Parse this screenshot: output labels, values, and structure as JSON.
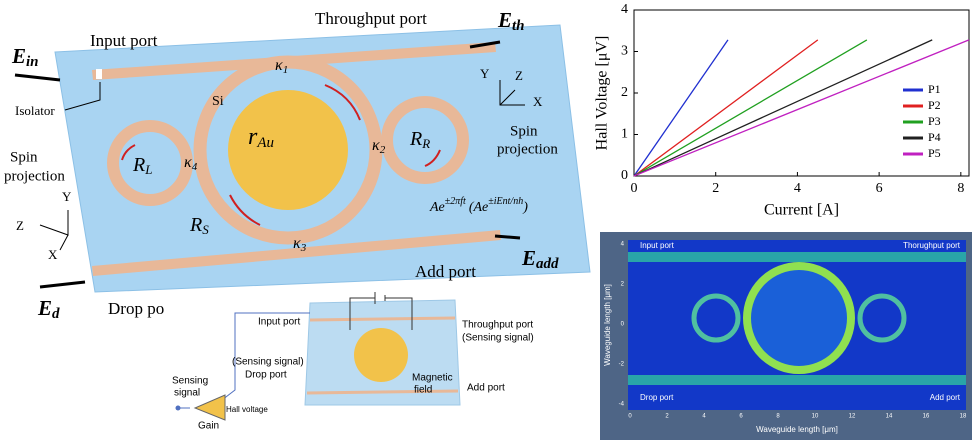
{
  "diagram": {
    "throughput_port": "Throughput port",
    "e_th": {
      "main": "E",
      "sub": "th"
    },
    "input_port": "Input port",
    "e_in": {
      "main": "E",
      "sub": "in"
    },
    "isolator": "Isolator",
    "si": "Si",
    "kappa1": {
      "main": "κ",
      "sub": "1"
    },
    "kappa2": {
      "main": "κ",
      "sub": "2"
    },
    "kappa3": {
      "main": "κ",
      "sub": "3"
    },
    "kappa4": {
      "main": "κ",
      "sub": "4"
    },
    "r_au": {
      "main": "r",
      "sub": "Au"
    },
    "r_r": {
      "main": "R",
      "sub": "R"
    },
    "r_l": {
      "main": "R",
      "sub": "L"
    },
    "r_s": {
      "main": "R",
      "sub": "S"
    },
    "spin_projection_right": [
      "Spin",
      "projection"
    ],
    "spin_projection_left": [
      "Spin",
      "projection"
    ],
    "axes_right": {
      "y": "Y",
      "z": "Z",
      "x": "X"
    },
    "axes_left": {
      "y": "Y",
      "z": "Z",
      "x": "X"
    },
    "formula": {
      "base1": "Ae",
      "exp1": "±2πft",
      "base2": "(Ae",
      "exp2": "±iEnt/nh",
      "close": ")"
    },
    "add_port": "Add port",
    "e_add": {
      "main": "E",
      "sub": "add"
    },
    "e_d": {
      "main": "E",
      "sub": "d"
    },
    "drop_port": "Drop po"
  },
  "circuit": {
    "input_port": "Input port",
    "throughput_port": "Throughput port",
    "sensing_signal_right": "(Sensing signal)",
    "sensing_signal_left": "(Sensing signal)",
    "drop_port": "Drop port",
    "magnetic_field": [
      "Magnetic",
      "field"
    ],
    "add_port": "Add port",
    "sensing_signal": [
      "Sensing",
      "signal"
    ],
    "gain": "Gain",
    "hall_voltage": "Hall voltage"
  },
  "chart_data": {
    "type": "line",
    "x_label": "Current [A]",
    "y_label": "Hall Voltage [μV]",
    "xlim": [
      0,
      8.2
    ],
    "ylim": [
      0,
      4
    ],
    "xticks": [
      0,
      2,
      4,
      6,
      8
    ],
    "yticks": [
      0,
      1,
      2,
      3,
      4
    ],
    "legend": "right",
    "series": [
      {
        "name": "P1",
        "color": "#2030d0",
        "x": [
          0,
          2.3
        ],
        "values": [
          0,
          3.28
        ]
      },
      {
        "name": "P2",
        "color": "#e02020",
        "x": [
          0,
          4.5
        ],
        "values": [
          0,
          3.28
        ]
      },
      {
        "name": "P3",
        "color": "#20a020",
        "x": [
          0,
          5.7
        ],
        "values": [
          0,
          3.28
        ]
      },
      {
        "name": "P4",
        "color": "#202020",
        "x": [
          0,
          7.3
        ],
        "values": [
          0,
          3.28
        ]
      },
      {
        "name": "P5",
        "color": "#c020c0",
        "x": [
          0,
          8.2
        ],
        "values": [
          0,
          3.28
        ]
      }
    ]
  },
  "simulation": {
    "input_port": "Input port",
    "throughput_port": "Thorughput port",
    "drop_port": "Drop port",
    "add_port": "Add port",
    "x_label": "Waveguide length [μm]",
    "y_label": "Waveguide length [μm]",
    "xticks": [
      0,
      2,
      4,
      6,
      8,
      10,
      12,
      14,
      16,
      18
    ],
    "yticks": [
      4,
      2,
      0,
      -2,
      -4
    ]
  }
}
